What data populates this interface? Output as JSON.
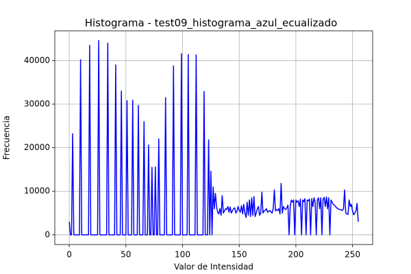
{
  "chart_data": {
    "type": "line",
    "title": "Histograma - test09_histograma_azul_ecualizado",
    "x_label": "Valor de Intensidad",
    "y_label": "Frecuencia",
    "x": [
      0,
      1,
      2,
      3,
      4,
      5,
      6,
      7,
      8,
      9,
      10,
      11,
      12,
      13,
      14,
      15,
      16,
      17,
      18,
      19,
      20,
      21,
      22,
      23,
      24,
      25,
      26,
      27,
      28,
      29,
      30,
      31,
      32,
      33,
      34,
      35,
      36,
      37,
      38,
      39,
      40,
      41,
      42,
      43,
      44,
      45,
      46,
      47,
      48,
      49,
      50,
      51,
      52,
      53,
      54,
      55,
      56,
      57,
      58,
      59,
      60,
      61,
      62,
      63,
      64,
      65,
      66,
      67,
      68,
      69,
      70,
      71,
      72,
      73,
      74,
      75,
      76,
      77,
      78,
      79,
      80,
      81,
      82,
      83,
      84,
      85,
      86,
      87,
      88,
      89,
      90,
      91,
      92,
      93,
      94,
      95,
      96,
      97,
      98,
      99,
      100,
      101,
      102,
      103,
      104,
      105,
      106,
      107,
      108,
      109,
      110,
      111,
      112,
      113,
      114,
      115,
      116,
      117,
      118,
      119,
      120,
      121,
      122,
      123,
      124,
      125,
      126,
      127,
      128,
      129,
      130,
      131,
      132,
      133,
      134,
      135,
      136,
      137,
      138,
      139,
      140,
      141,
      142,
      143,
      144,
      145,
      146,
      147,
      148,
      149,
      150,
      151,
      152,
      153,
      154,
      155,
      156,
      157,
      158,
      159,
      160,
      161,
      162,
      163,
      164,
      165,
      166,
      167,
      168,
      169,
      170,
      171,
      172,
      173,
      174,
      175,
      176,
      177,
      178,
      179,
      180,
      181,
      182,
      183,
      184,
      185,
      186,
      187,
      188,
      189,
      190,
      191,
      192,
      193,
      194,
      195,
      196,
      197,
      198,
      199,
      200,
      201,
      202,
      203,
      204,
      205,
      206,
      207,
      208,
      209,
      210,
      211,
      212,
      213,
      214,
      215,
      216,
      217,
      218,
      219,
      220,
      221,
      222,
      223,
      224,
      225,
      226,
      227,
      228,
      229,
      230,
      231,
      232,
      233,
      234,
      235,
      236,
      237,
      238,
      239,
      240,
      241,
      242,
      243,
      244,
      245,
      246,
      247,
      248,
      249,
      250,
      251,
      252,
      253,
      254,
      255
    ],
    "series": [
      {
        "name": "Frecuencia",
        "color": "#0000ff",
        "values": [
          3000,
          0,
          0,
          23200,
          0,
          0,
          0,
          0,
          0,
          0,
          40200,
          0,
          0,
          0,
          0,
          0,
          0,
          0,
          43500,
          0,
          0,
          0,
          0,
          0,
          0,
          0,
          44600,
          0,
          0,
          0,
          0,
          0,
          0,
          0,
          44000,
          0,
          0,
          0,
          0,
          0,
          0,
          39000,
          0,
          0,
          0,
          0,
          33000,
          0,
          0,
          0,
          0,
          30800,
          0,
          0,
          0,
          0,
          30900,
          0,
          0,
          0,
          0,
          29700,
          0,
          0,
          0,
          0,
          26000,
          0,
          0,
          0,
          20600,
          0,
          0,
          15500,
          0,
          0,
          15600,
          0,
          0,
          22000,
          0,
          0,
          0,
          0,
          0,
          31500,
          0,
          0,
          0,
          0,
          0,
          0,
          38800,
          0,
          0,
          0,
          0,
          0,
          0,
          41600,
          0,
          0,
          0,
          0,
          0,
          41400,
          0,
          0,
          0,
          0,
          0,
          0,
          41300,
          0,
          0,
          0,
          0,
          0,
          0,
          32900,
          0,
          0,
          0,
          21800,
          0,
          14600,
          0,
          11000,
          6000,
          9500,
          6500,
          5200,
          4800,
          6000,
          4500,
          9000,
          5000,
          5500,
          6000,
          5800,
          6500,
          5200,
          6400,
          5000,
          5500,
          6000,
          6200,
          5000,
          5400,
          6500,
          5600,
          5200,
          6700,
          4800,
          7000,
          5000,
          4000,
          7500,
          4500,
          8000,
          4200,
          8500,
          4500,
          8800,
          4200,
          5000,
          6000,
          6500,
          4500,
          5000,
          9800,
          5000,
          5500,
          5600,
          6000,
          5200,
          5400,
          5600,
          5300,
          5000,
          6000,
          10300,
          5500,
          5800,
          5600,
          6000,
          4800,
          11800,
          5000,
          6500,
          6000,
          5800,
          6200,
          6800,
          0,
          6500,
          8000,
          7500,
          8000,
          0,
          8000,
          7500,
          7800,
          6500,
          8200,
          0,
          8000,
          7600,
          8300,
          0,
          8000,
          7800,
          8200,
          0,
          8300,
          6500,
          8500,
          7500,
          0,
          8000,
          8500,
          6000,
          8500,
          0,
          8200,
          8600,
          6500,
          8700,
          6000,
          8500,
          0,
          8000,
          7500,
          7000,
          6800,
          6500,
          6200,
          6000,
          5900,
          5800,
          5700,
          5600,
          6000,
          10300,
          5000,
          4800,
          4700,
          8000,
          6500,
          7000,
          5500,
          4600,
          5000,
          5500,
          7200,
          3000
        ]
      }
    ],
    "xlim": [
      -12.75,
      267.75
    ],
    "ylim": [
      -2230,
      46830
    ],
    "xticks": [
      0,
      50,
      100,
      150,
      200,
      250
    ],
    "yticks": [
      0,
      10000,
      20000,
      30000,
      40000
    ],
    "grid": true
  }
}
